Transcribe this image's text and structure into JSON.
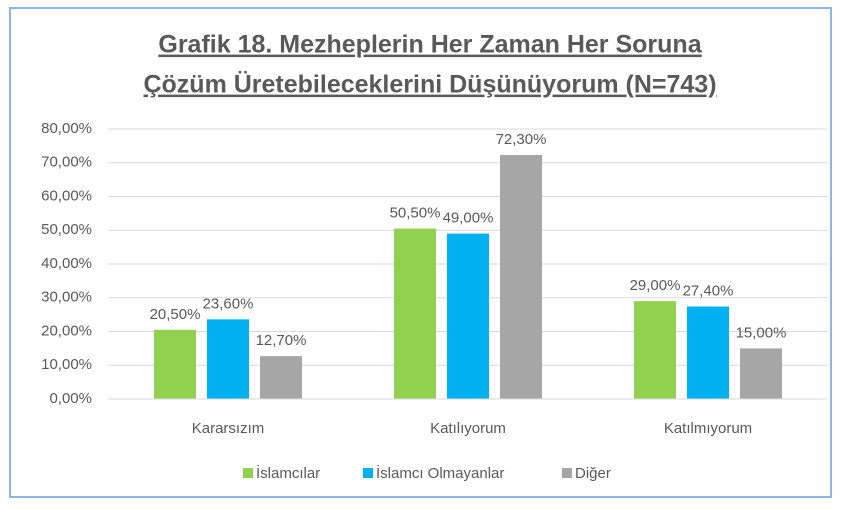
{
  "chart_data": {
    "type": "bar",
    "title": [
      "Grafik  18. Mezheplerin Her Zaman Her Soruna",
      "Çözüm Üretebileceklerini Düşünüyorum (N=743)"
    ],
    "categories": [
      "Kararsızım",
      "Katılıyorum",
      "Katılmıyorum"
    ],
    "series": [
      {
        "name": "İslamcılar",
        "color": "#92d050",
        "values": [
          20.5,
          50.5,
          29.0
        ],
        "value_labels": [
          "20,50%",
          "50,50%",
          "29,00%"
        ]
      },
      {
        "name": "İslamcı Olmayanlar",
        "color": "#00b0f0",
        "values": [
          23.6,
          49.0,
          27.4
        ],
        "value_labels": [
          "23,60%",
          "49,00%",
          "27,40%"
        ]
      },
      {
        "name": "Diğer",
        "color": "#a6a6a6",
        "values": [
          12.7,
          72.3,
          15.0
        ],
        "value_labels": [
          "12,70%",
          "72,30%",
          "15,00%"
        ]
      }
    ],
    "ylim": [
      0,
      80
    ],
    "yticks": [
      {
        "value": 0,
        "label": "0,00%"
      },
      {
        "value": 10,
        "label": "10,00%"
      },
      {
        "value": 20,
        "label": "20,00%"
      },
      {
        "value": 30,
        "label": "30,00%"
      },
      {
        "value": 40,
        "label": "40,00%"
      },
      {
        "value": 50,
        "label": "50,00%"
      },
      {
        "value": 60,
        "label": "60,00%"
      },
      {
        "value": 70,
        "label": "70,00%"
      },
      {
        "value": 80,
        "label": "80,00%"
      }
    ],
    "grid": true,
    "legend": "bottom"
  }
}
